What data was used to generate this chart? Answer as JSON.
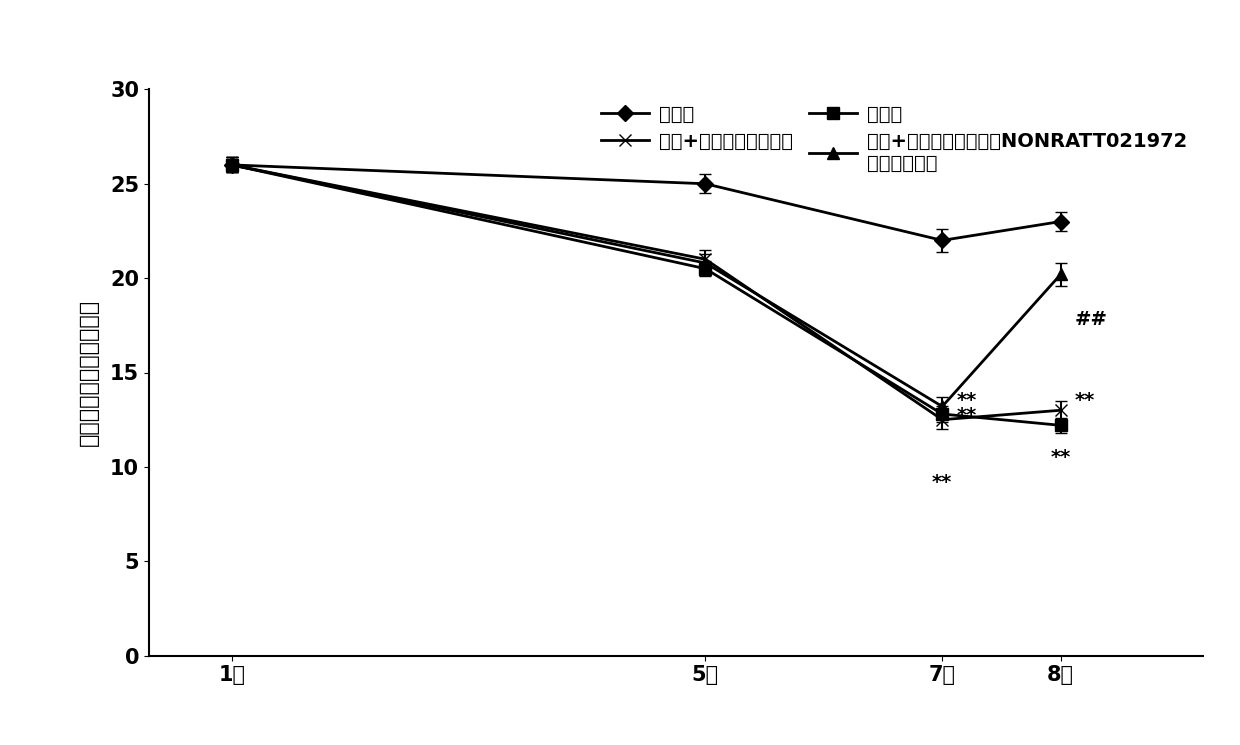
{
  "x_positions": [
    1,
    5,
    7,
    8
  ],
  "x_labels": [
    "1周",
    "5周",
    "7周",
    "8周"
  ],
  "series": [
    {
      "name": "对照组",
      "y": [
        26.0,
        25.0,
        22.0,
        23.0
      ],
      "yerr": [
        0.4,
        0.5,
        0.6,
        0.5
      ],
      "marker": "D",
      "linestyle": "-",
      "color": "#000000",
      "linewidth": 2.0,
      "markersize": 8,
      "markerfacecolor": "#000000"
    },
    {
      "name": "模型+乱序小干扰处理组",
      "y": [
        26.0,
        21.0,
        12.5,
        13.0
      ],
      "yerr": [
        0.4,
        0.5,
        0.5,
        0.5
      ],
      "marker": "x",
      "linestyle": "-",
      "color": "#000000",
      "linewidth": 2.0,
      "markersize": 9,
      "markerfacecolor": "#000000"
    },
    {
      "name": "模型组",
      "y": [
        26.0,
        20.5,
        12.8,
        12.2
      ],
      "yerr": [
        0.4,
        0.4,
        0.4,
        0.4
      ],
      "marker": "s",
      "linestyle": "-",
      "color": "#000000",
      "linewidth": 2.0,
      "markersize": 8,
      "markerfacecolor": "#000000"
    },
    {
      "name": "模型+长非编码核糖核酸NONRATT021972\n小干扰处理组",
      "y": [
        26.0,
        20.8,
        13.2,
        20.2
      ],
      "yerr": [
        0.4,
        0.5,
        0.5,
        0.6
      ],
      "marker": "^",
      "linestyle": "-",
      "color": "#000000",
      "linewidth": 2.0,
      "markersize": 8,
      "markerfacecolor": "#000000"
    }
  ],
  "ylabel": "机械缩足反射阙値（克）",
  "ylim": [
    0,
    30
  ],
  "yticks": [
    0,
    5,
    10,
    15,
    20,
    25,
    30
  ],
  "background_color": "#ffffff",
  "font_size_axis": 16,
  "font_size_legend": 14,
  "font_size_tick": 15,
  "font_size_annot": 14
}
